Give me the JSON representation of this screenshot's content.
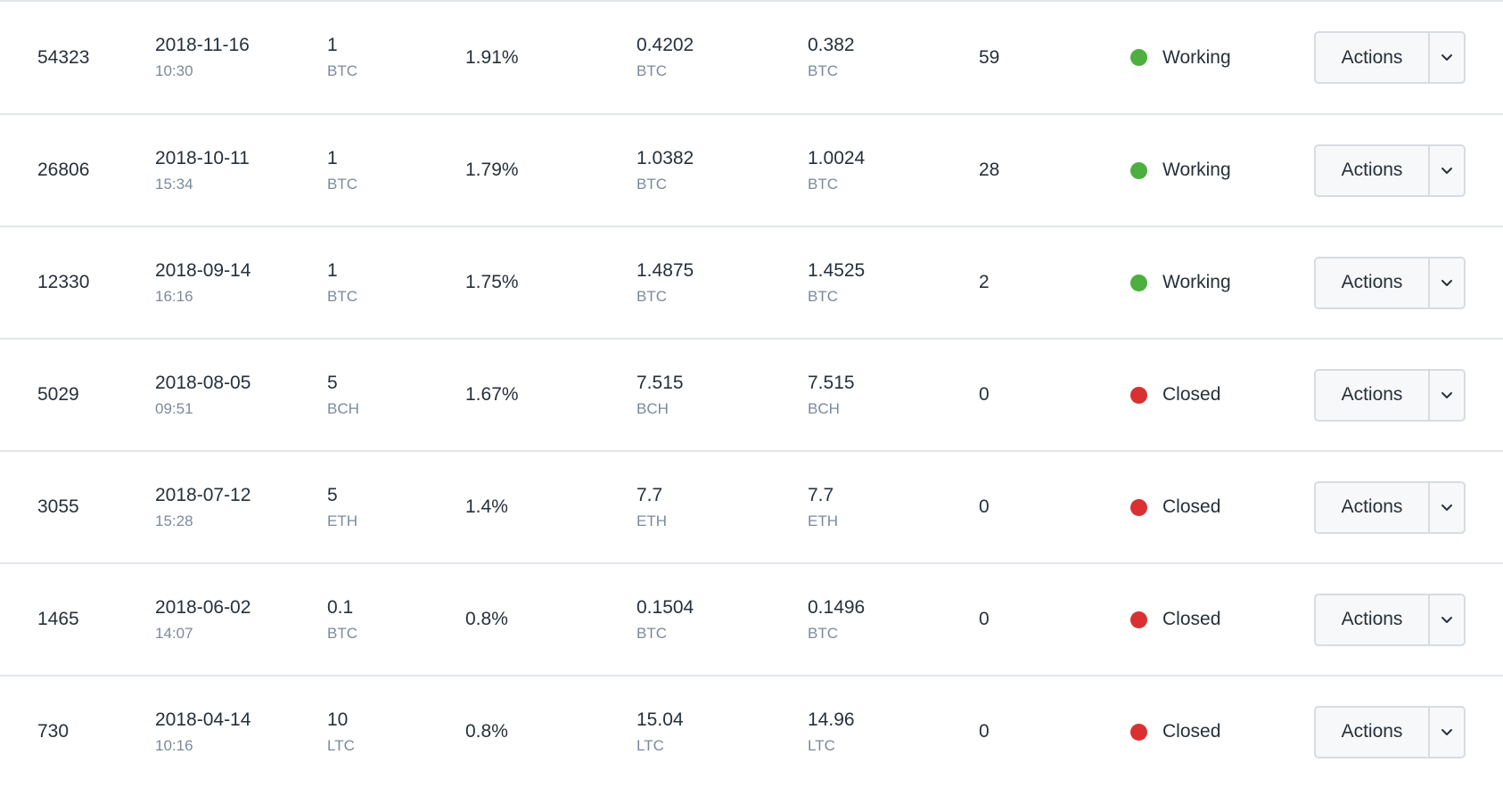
{
  "colors": {
    "working": "#4caf3f",
    "closed": "#d93131"
  },
  "icons": {
    "status": "status-dot-icon",
    "dropdown": "chevron-down-icon"
  },
  "rows": [
    {
      "id": "54323",
      "date": "2018-11-16",
      "time": "10:30",
      "amount": "1",
      "amount_unit": "BTC",
      "rate": "1.91%",
      "total": "0.4202",
      "total_unit": "BTC",
      "remaining": "0.382",
      "remaining_unit": "BTC",
      "count": "59",
      "status": "Working",
      "status_color": "#4caf3f",
      "actions_label": "Actions"
    },
    {
      "id": "26806",
      "date": "2018-10-11",
      "time": "15:34",
      "amount": "1",
      "amount_unit": "BTC",
      "rate": "1.79%",
      "total": "1.0382",
      "total_unit": "BTC",
      "remaining": "1.0024",
      "remaining_unit": "BTC",
      "count": "28",
      "status": "Working",
      "status_color": "#4caf3f",
      "actions_label": "Actions"
    },
    {
      "id": "12330",
      "date": "2018-09-14",
      "time": "16:16",
      "amount": "1",
      "amount_unit": "BTC",
      "rate": "1.75%",
      "total": "1.4875",
      "total_unit": "BTC",
      "remaining": "1.4525",
      "remaining_unit": "BTC",
      "count": "2",
      "status": "Working",
      "status_color": "#4caf3f",
      "actions_label": "Actions"
    },
    {
      "id": "5029",
      "date": "2018-08-05",
      "time": "09:51",
      "amount": "5",
      "amount_unit": "BCH",
      "rate": "1.67%",
      "total": "7.515",
      "total_unit": "BCH",
      "remaining": "7.515",
      "remaining_unit": "BCH",
      "count": "0",
      "status": "Closed",
      "status_color": "#d93131",
      "actions_label": "Actions"
    },
    {
      "id": "3055",
      "date": "2018-07-12",
      "time": "15:28",
      "amount": "5",
      "amount_unit": "ETH",
      "rate": "1.4%",
      "total": "7.7",
      "total_unit": "ETH",
      "remaining": "7.7",
      "remaining_unit": "ETH",
      "count": "0",
      "status": "Closed",
      "status_color": "#d93131",
      "actions_label": "Actions"
    },
    {
      "id": "1465",
      "date": "2018-06-02",
      "time": "14:07",
      "amount": "0.1",
      "amount_unit": "BTC",
      "rate": "0.8%",
      "total": "0.1504",
      "total_unit": "BTC",
      "remaining": "0.1496",
      "remaining_unit": "BTC",
      "count": "0",
      "status": "Closed",
      "status_color": "#d93131",
      "actions_label": "Actions"
    },
    {
      "id": "730",
      "date": "2018-04-14",
      "time": "10:16",
      "amount": "10",
      "amount_unit": "LTC",
      "rate": "0.8%",
      "total": "15.04",
      "total_unit": "LTC",
      "remaining": "14.96",
      "remaining_unit": "LTC",
      "count": "0",
      "status": "Closed",
      "status_color": "#d93131",
      "actions_label": "Actions"
    }
  ]
}
